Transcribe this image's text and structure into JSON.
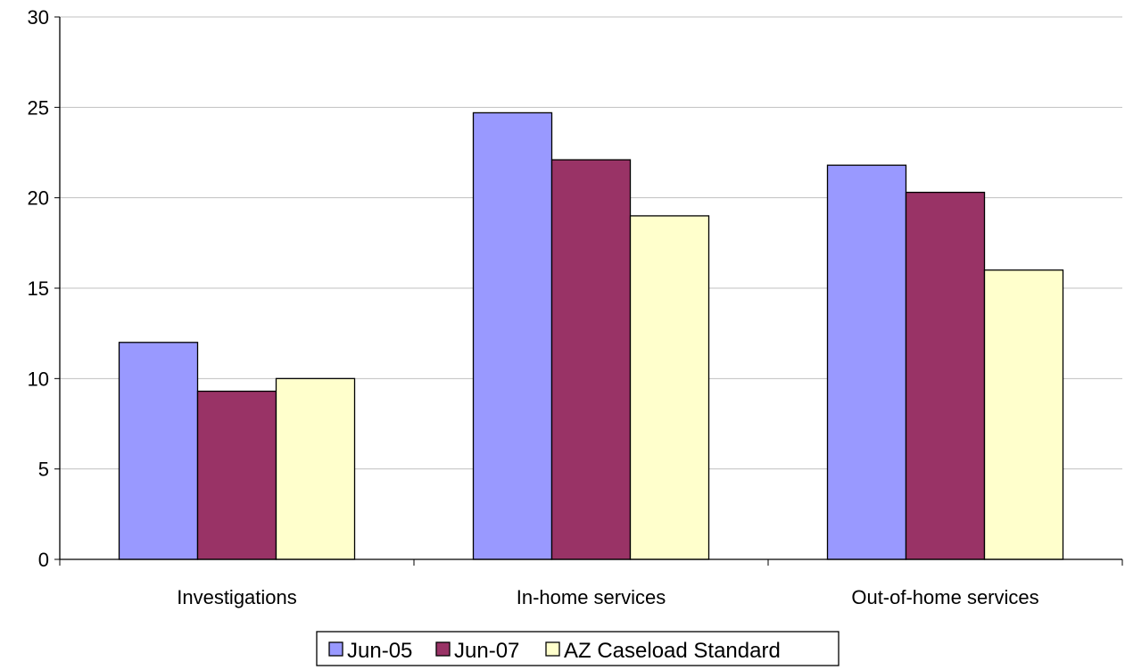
{
  "chart_data": {
    "type": "bar",
    "categories": [
      "Investigations",
      "In-home services",
      "Out-of-home services"
    ],
    "series": [
      {
        "name": "Jun-05",
        "values": [
          12,
          24.7,
          21.8
        ],
        "color": "#9999ff"
      },
      {
        "name": "Jun-07",
        "values": [
          9.3,
          22.1,
          20.3
        ],
        "color": "#993366"
      },
      {
        "name": "AZ Caseload Standard",
        "values": [
          10,
          19,
          16
        ],
        "color": "#ffffcc"
      }
    ],
    "ylim": [
      0,
      30
    ],
    "yticks": [
      0,
      5,
      10,
      15,
      20,
      25,
      30
    ],
    "grid": true,
    "legend_position": "bottom"
  }
}
